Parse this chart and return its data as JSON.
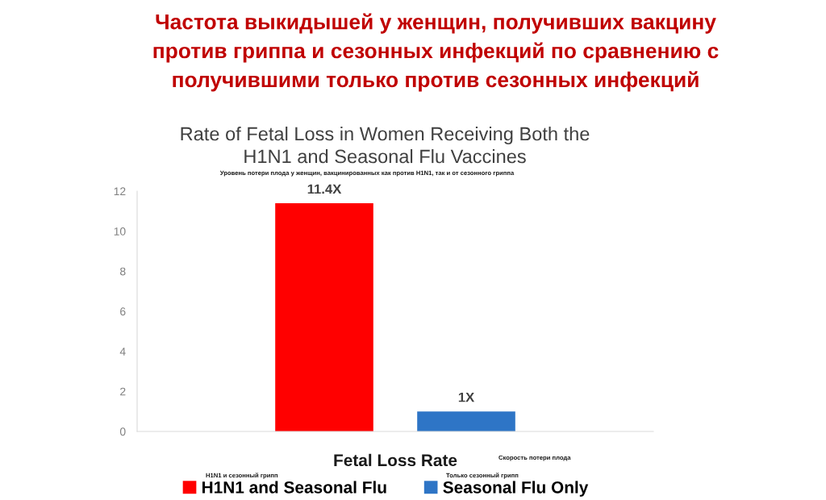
{
  "chart_data": {
    "type": "bar",
    "title": "Частота выкидышей у женщин, получивших вакцину\nпротив гриппа и сезонных инфекций по сравнению с\nполучившими только против сезонных инфекций",
    "subtitle": "Rate of Fetal Loss in Women Receiving Both the\nH1N1 and Seasonal Flu Vaccines",
    "annotations": [
      "Уровень потери плода у женщин, вакцинированных как против H1N1, так и от сезонного гриппа",
      "Скорость потери плода",
      "H1N1 и сезонный грипп",
      "Только сезонный грипп"
    ],
    "categories": [
      "Fetal Loss Rate"
    ],
    "series": [
      {
        "name": "H1N1 and Seasonal Flu",
        "color": "#ff0000",
        "values": [
          11.4
        ],
        "value_labels": [
          "11.4X"
        ]
      },
      {
        "name": "Seasonal Flu Only",
        "color": "#2e75c6",
        "values": [
          1
        ],
        "value_labels": [
          "1X"
        ]
      }
    ],
    "ylim": [
      0,
      12
    ],
    "yticks": [
      0,
      2,
      4,
      6,
      8,
      10,
      12
    ],
    "grid": false,
    "legend": "bottom"
  }
}
